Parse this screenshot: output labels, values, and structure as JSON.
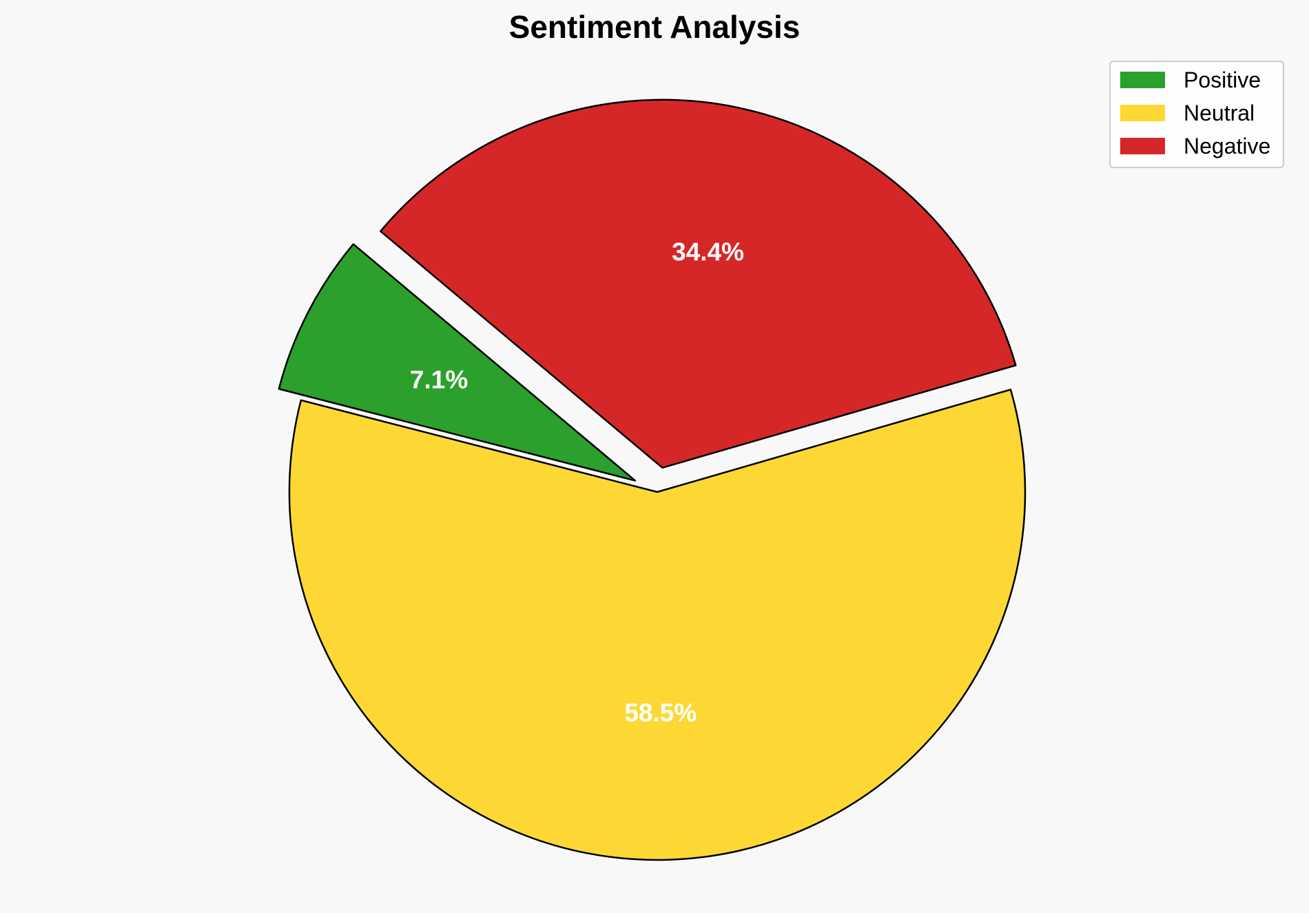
{
  "chart_data": {
    "type": "pie",
    "title": "Sentiment Analysis",
    "categories": [
      "Positive",
      "Neutral",
      "Negative"
    ],
    "values": [
      7.1,
      58.5,
      34.4
    ],
    "labels": [
      "7.1%",
      "58.5%",
      "34.4%"
    ],
    "colors": [
      "#2ca02c",
      "#fdd835",
      "#d62728"
    ],
    "exploded": [
      true,
      false,
      true
    ],
    "legend": {
      "position": "top-right",
      "entries": [
        "Positive",
        "Neutral",
        "Negative"
      ]
    }
  }
}
